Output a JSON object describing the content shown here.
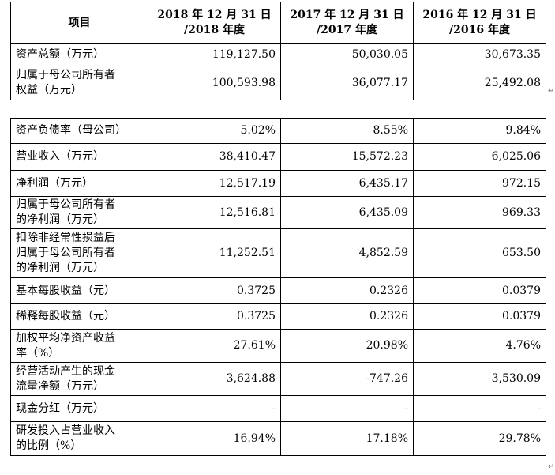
{
  "header": {
    "item": "项目",
    "col2018": [
      "2018 年 12 月 31 日",
      "/2018 年度"
    ],
    "col2017": [
      "2017 年 12 月 31 日",
      "/2017 年度"
    ],
    "col2016": [
      "2016 年 12 月 31 日",
      "/2016 年度"
    ]
  },
  "rows_top": [
    {
      "label": [
        "资产总额（万元）"
      ],
      "v2018": "119,127.50",
      "v2017": "50,030.05",
      "v2016": "30,673.35"
    },
    {
      "label": [
        "归属于母公司所有者",
        "权益（万元）"
      ],
      "v2018": "100,593.98",
      "v2017": "36,077.17",
      "v2016": "25,492.08"
    }
  ],
  "rows_bottom": [
    {
      "label": [
        "资产负债率（母公司）"
      ],
      "v2018": "5.02%",
      "v2017": "8.55%",
      "v2016": "9.84%"
    },
    {
      "label": [
        "营业收入（万元）"
      ],
      "v2018": "38,410.47",
      "v2017": "15,572.23",
      "v2016": "6,025.06"
    },
    {
      "label": [
        "净利润（万元）"
      ],
      "v2018": "12,517.19",
      "v2017": "6,435.17",
      "v2016": "972.15"
    },
    {
      "label": [
        "归属于母公司所有者",
        "的净利润（万元）"
      ],
      "v2018": "12,516.81",
      "v2017": "6,435.09",
      "v2016": "969.33"
    },
    {
      "label": [
        "扣除非经常性损益后",
        "归属于母公司所有者",
        "的净利润（万元）"
      ],
      "v2018": "11,252.51",
      "v2017": "4,852.59",
      "v2016": "653.50"
    },
    {
      "label": [
        "基本每股收益（元）"
      ],
      "v2018": "0.3725",
      "v2017": "0.2326",
      "v2016": "0.0379"
    },
    {
      "label": [
        "稀释每股收益（元）"
      ],
      "v2018": "0.3725",
      "v2017": "0.2326",
      "v2016": "0.0379"
    },
    {
      "label": [
        "加权平均净资产收益",
        "率（%）"
      ],
      "v2018": "27.61%",
      "v2017": "20.98%",
      "v2016": "4.76%"
    },
    {
      "label": [
        "经营活动产生的现金",
        "流量净额（万元）"
      ],
      "v2018": "3,624.88",
      "v2017": "-747.26",
      "v2016": "-3,530.09"
    },
    {
      "label": [
        "现金分红（万元）"
      ],
      "v2018": "-",
      "v2017": "-",
      "v2016": "-"
    },
    {
      "label": [
        "研发投入占营业收入",
        "的比例（%）"
      ],
      "v2018": "16.94%",
      "v2017": "17.18%",
      "v2016": "29.78%"
    }
  ],
  "return_mark": "↵"
}
